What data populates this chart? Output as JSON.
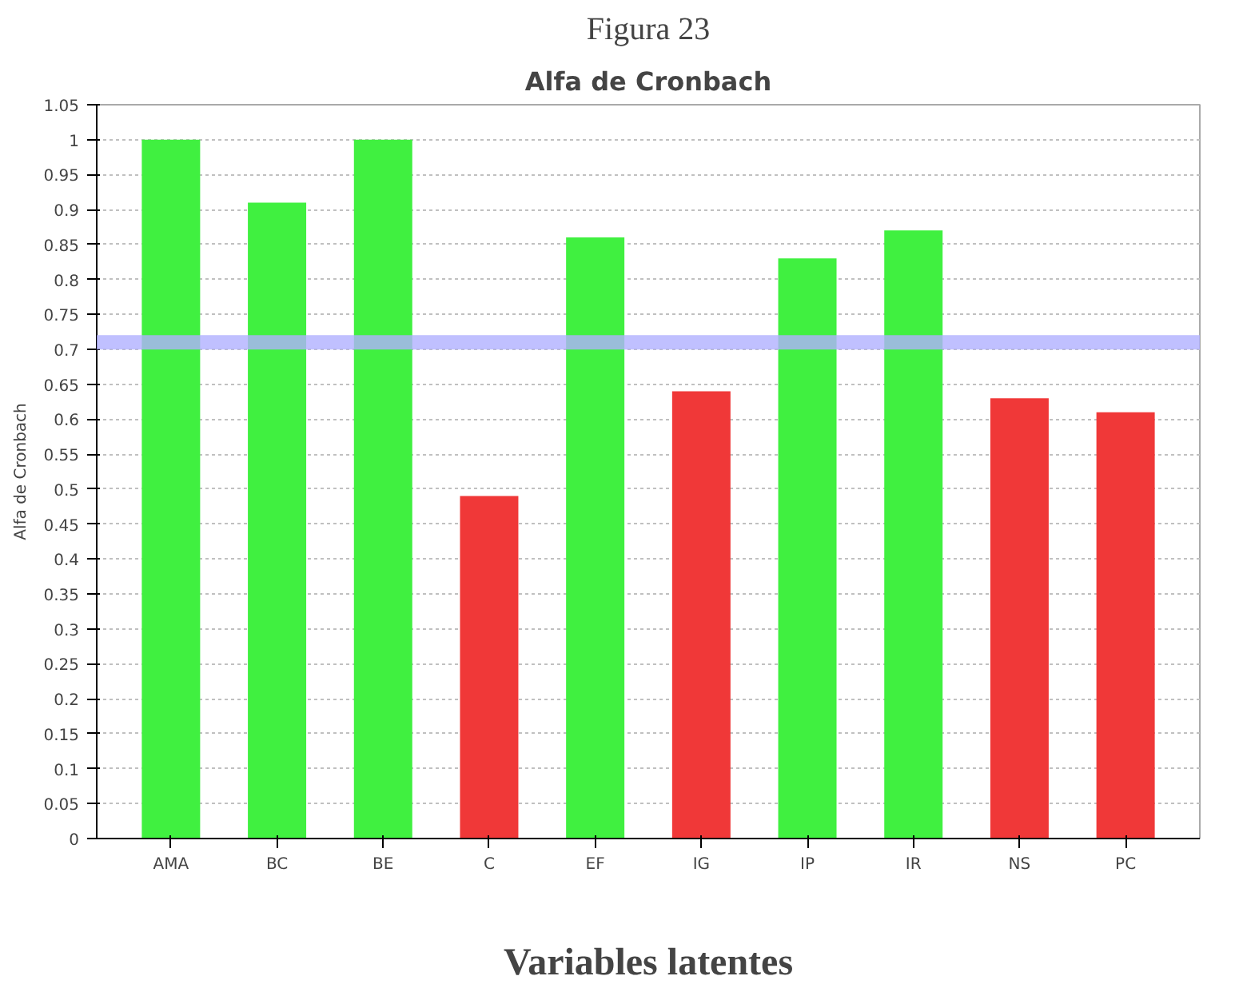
{
  "chart_data": {
    "type": "bar",
    "title": "Figura 23",
    "subtitle": "Alfa de Cronbach",
    "xlabel": "Variables latentes",
    "ylabel": "Alfa de Cronbach",
    "categories": [
      "AMA",
      "BC",
      "BE",
      "C",
      "EF",
      "IG",
      "IP",
      "IR",
      "NS",
      "PC"
    ],
    "values": [
      1.0,
      0.91,
      1.0,
      0.49,
      0.86,
      0.64,
      0.83,
      0.87,
      0.63,
      0.61
    ],
    "colors": [
      "#40f040",
      "#40f040",
      "#40f040",
      "#f03838",
      "#40f040",
      "#f03838",
      "#40f040",
      "#40f040",
      "#f03838",
      "#f03838"
    ],
    "ylim": [
      0,
      1.05
    ],
    "yticks": [
      0,
      0.05,
      0.1,
      0.15,
      0.2,
      0.25,
      0.3,
      0.35,
      0.4,
      0.45,
      0.5,
      0.55,
      0.6,
      0.65,
      0.7,
      0.75,
      0.8,
      0.85,
      0.9,
      0.95,
      1,
      1.05
    ],
    "grid": "y",
    "ref_lines": [
      {
        "axis": "y",
        "value": 0.71,
        "color": "#b0b0ff"
      }
    ]
  }
}
